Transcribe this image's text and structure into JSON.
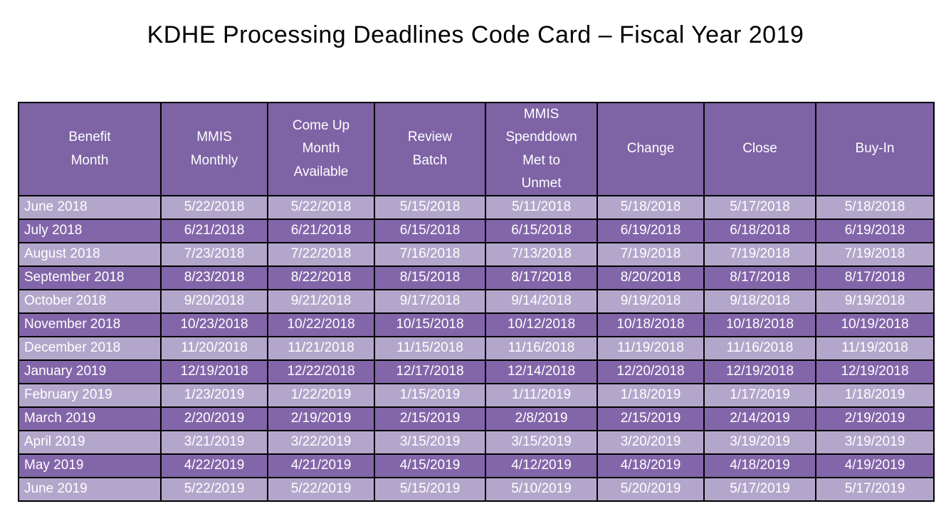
{
  "title": "KDHE Processing Deadlines Code Card – Fiscal Year 2019",
  "colors": {
    "header_bg": "#7E63A5",
    "row_dark": "#8366A9",
    "row_light": "#B3A6CB",
    "cell_text": "#FFFFFF",
    "grid_border": "#000000",
    "title_color": "#000000",
    "page_bg": "#FFFFFF"
  },
  "table": {
    "columns": [
      "Benefit\nMonth",
      "MMIS\nMonthly",
      "Come Up\nMonth\nAvailable",
      "Review\nBatch",
      "MMIS\nSpenddown\nMet to\nUnmet",
      "Change",
      "Close",
      "Buy-In"
    ],
    "rows": [
      [
        "June 2018",
        "5/22/2018",
        "5/22/2018",
        "5/15/2018",
        "5/11/2018",
        "5/18/2018",
        "5/17/2018",
        "5/18/2018"
      ],
      [
        "July 2018",
        "6/21/2018",
        "6/21/2018",
        "6/15/2018",
        "6/15/2018",
        "6/19/2018",
        "6/18/2018",
        "6/19/2018"
      ],
      [
        "August 2018",
        "7/23/2018",
        "7/22/2018",
        "7/16/2018",
        "7/13/2018",
        "7/19/2018",
        "7/19/2018",
        "7/19/2018"
      ],
      [
        "September 2018",
        "8/23/2018",
        "8/22/2018",
        "8/15/2018",
        "8/17/2018",
        "8/20/2018",
        "8/17/2018",
        "8/17/2018"
      ],
      [
        "October 2018",
        "9/20/2018",
        "9/21/2018",
        "9/17/2018",
        "9/14/2018",
        "9/19/2018",
        "9/18/2018",
        "9/19/2018"
      ],
      [
        "November 2018",
        "10/23/2018",
        "10/22/2018",
        "10/15/2018",
        "10/12/2018",
        "10/18/2018",
        "10/18/2018",
        "10/19/2018"
      ],
      [
        "December 2018",
        "11/20/2018",
        "11/21/2018",
        "11/15/2018",
        "11/16/2018",
        "11/19/2018",
        "11/16/2018",
        "11/19/2018"
      ],
      [
        "January 2019",
        "12/19/2018",
        "12/22/2018",
        "12/17/2018",
        "12/14/2018",
        "12/20/2018",
        "12/19/2018",
        "12/19/2018"
      ],
      [
        "February 2019",
        "1/23/2019",
        "1/22/2019",
        "1/15/2019",
        "1/11/2019",
        "1/18/2019",
        "1/17/2019",
        "1/18/2019"
      ],
      [
        "March 2019",
        "2/20/2019",
        "2/19/2019",
        "2/15/2019",
        "2/8/2019",
        "2/15/2019",
        "2/14/2019",
        "2/19/2019"
      ],
      [
        "April 2019",
        "3/21/2019",
        "3/22/2019",
        "3/15/2019",
        "3/15/2019",
        "3/20/2019",
        "3/19/2019",
        "3/19/2019"
      ],
      [
        "May 2019",
        "4/22/2019",
        "4/21/2019",
        "4/15/2019",
        "4/12/2019",
        "4/18/2019",
        "4/18/2019",
        "4/19/2019"
      ],
      [
        "June 2019",
        "5/22/2019",
        "5/22/2019",
        "5/15/2019",
        "5/10/2019",
        "5/20/2019",
        "5/17/2019",
        "5/17/2019"
      ]
    ]
  }
}
